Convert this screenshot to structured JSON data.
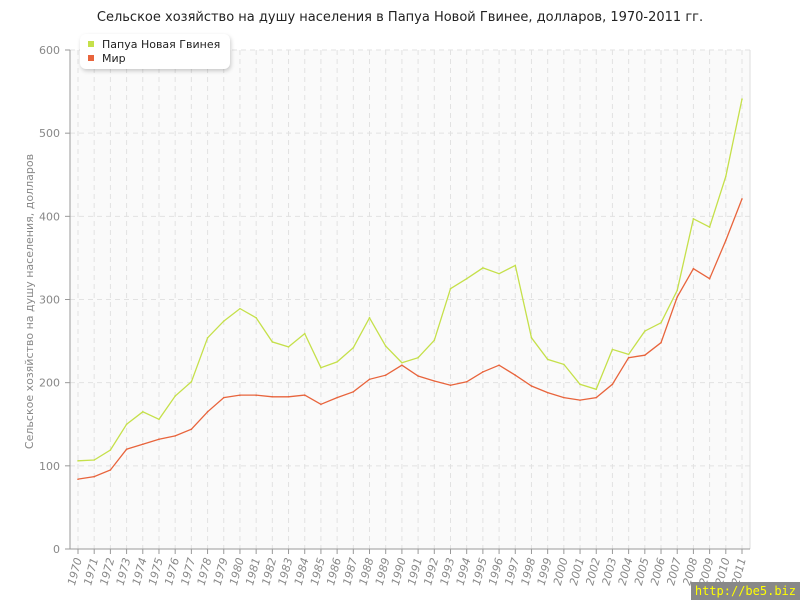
{
  "chart_data": {
    "type": "line",
    "title": "Сельское хозяйство на душу населения в Папуа Новой Гвинее, долларов, 1970-2011 гг.",
    "xlabel": "",
    "ylabel": "Сельское хозяйство на душу населения, долларов",
    "ylim": [
      0,
      600
    ],
    "yticks": [
      0,
      100,
      200,
      300,
      400,
      500,
      600
    ],
    "grid": true,
    "legend_position": "top-left",
    "x": [
      1970,
      1971,
      1972,
      1973,
      1974,
      1975,
      1976,
      1977,
      1978,
      1979,
      1980,
      1981,
      1982,
      1983,
      1984,
      1985,
      1986,
      1987,
      1988,
      1989,
      1990,
      1991,
      1992,
      1993,
      1994,
      1995,
      1996,
      1997,
      1998,
      1999,
      2000,
      2001,
      2002,
      2003,
      2004,
      2005,
      2006,
      2007,
      2008,
      2009,
      2010,
      2011
    ],
    "series": [
      {
        "name": "Папуа Новая Гвинея",
        "color": "#c5e04a",
        "values": [
          106,
          107,
          119,
          150,
          165,
          156,
          184,
          201,
          254,
          274,
          289,
          278,
          249,
          243,
          259,
          218,
          225,
          242,
          278,
          244,
          224,
          230,
          251,
          313,
          325,
          338,
          331,
          341,
          254,
          228,
          222,
          198,
          192,
          240,
          234,
          262,
          272,
          311,
          397,
          387,
          448,
          541
        ]
      },
      {
        "name": "Мир",
        "color": "#e8643c",
        "values": [
          84,
          87,
          95,
          120,
          126,
          132,
          136,
          144,
          165,
          182,
          185,
          185,
          183,
          183,
          185,
          174,
          182,
          189,
          204,
          209,
          221,
          208,
          202,
          197,
          201,
          213,
          221,
          209,
          196,
          188,
          182,
          179,
          182,
          198,
          230,
          233,
          248,
          303,
          337,
          325,
          371,
          421
        ]
      }
    ]
  },
  "watermark": "http://be5.biz"
}
